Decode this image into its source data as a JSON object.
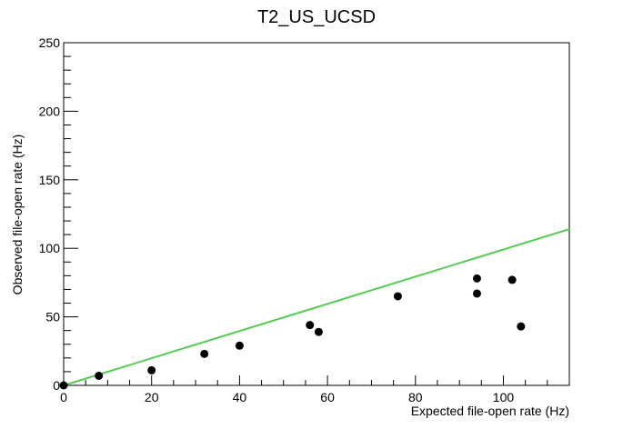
{
  "chart_data": {
    "type": "scatter",
    "title": "T2_US_UCSD",
    "xlabel": "Expected file-open rate (Hz)",
    "ylabel": "Observed file-open rate (Hz)",
    "xlim": [
      0,
      115
    ],
    "ylim": [
      0,
      250
    ],
    "x_major_ticks": [
      0,
      20,
      40,
      60,
      80,
      100
    ],
    "y_major_ticks": [
      0,
      50,
      100,
      150,
      200,
      250
    ],
    "grid": false,
    "legend": "none",
    "marker_color": "#000000",
    "line_color": "#55cc55",
    "series": [
      {
        "x": [
          0,
          8,
          20,
          32,
          40,
          56,
          58,
          76,
          94,
          94,
          102,
          104
        ],
        "y": [
          0,
          7,
          11,
          23,
          29,
          44,
          39,
          65,
          78,
          67,
          77,
          43
        ]
      }
    ],
    "reference_line": {
      "x": [
        0,
        115
      ],
      "y": [
        0,
        114
      ]
    }
  }
}
